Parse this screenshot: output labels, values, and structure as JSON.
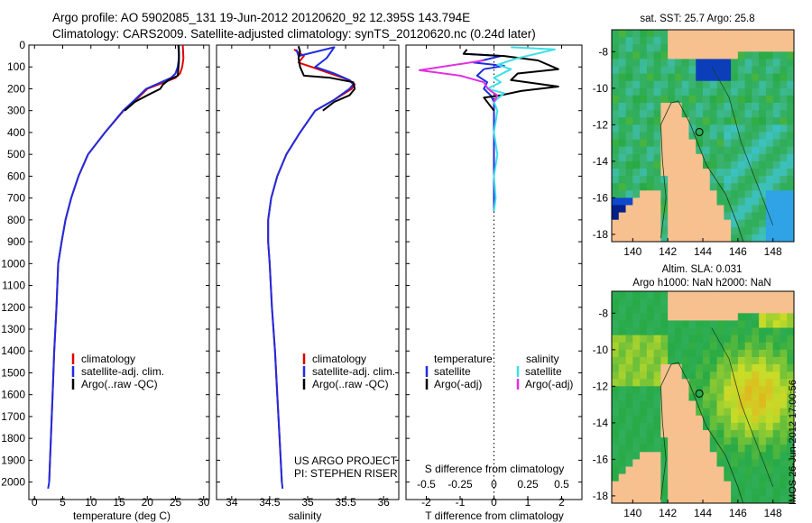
{
  "header": {
    "line1": "Argo profile: AO 5902085_131 19-Jun-2012 20120620_92 12.395S 143.794E",
    "line2": "Climatology: CARS2009. Satellite-adjusted climatology: synTS_20120620.nc (0.24d later)"
  },
  "stamp": "IMOS 26-Jun-2012 17:00:56",
  "project": {
    "line1": "US ARGO PROJECT",
    "line2": "PI: STEPHEN RISER"
  },
  "colors": {
    "climatology": "#e00000",
    "satellite": "#1f2de0",
    "argo": "#000000",
    "cyan": "#3ee0e8",
    "magenta": "#e030e0",
    "land": "#f7c08f"
  },
  "chart_data": [
    {
      "type": "line",
      "name": "temperature",
      "xlabel": "temperature (deg C)",
      "xlim": [
        -1,
        31
      ],
      "ylim": [
        0,
        2080
      ],
      "xticks": [
        "0",
        "5",
        "10",
        "15",
        "20",
        "25",
        "30"
      ],
      "yticks": [
        "0",
        "100",
        "200",
        "300",
        "400",
        "500",
        "600",
        "700",
        "800",
        "900",
        "1000",
        "1100",
        "1200",
        "1300",
        "1400",
        "1500",
        "1600",
        "1700",
        "1800",
        "1900",
        "2000"
      ],
      "legend": [
        "climatology",
        "satellite-adj. clim.",
        "Argo(..raw -QC)"
      ],
      "series": [
        {
          "name": "climatology",
          "color": "#e00000",
          "points": [
            [
              26.3,
              0
            ],
            [
              26.4,
              60
            ],
            [
              26.2,
              100
            ],
            [
              25.8,
              130
            ],
            [
              25.0,
              150
            ],
            [
              22.5,
              175
            ],
            [
              20.0,
              200
            ],
            [
              18.0,
              250
            ],
            [
              15.8,
              300
            ],
            [
              12.5,
              400
            ],
            [
              9.5,
              500
            ],
            [
              7.8,
              600
            ],
            [
              6.5,
              700
            ],
            [
              5.5,
              800
            ],
            [
              4.8,
              900
            ],
            [
              4.2,
              1000
            ],
            [
              3.9,
              1200
            ],
            [
              3.5,
              1400
            ],
            [
              3.2,
              1600
            ],
            [
              2.9,
              1800
            ],
            [
              2.6,
              2000
            ]
          ]
        },
        {
          "name": "satellite-adj. clim.",
          "color": "#1f2de0",
          "points": [
            [
              25.6,
              0
            ],
            [
              25.6,
              60
            ],
            [
              25.4,
              100
            ],
            [
              25.0,
              130
            ],
            [
              24.2,
              150
            ],
            [
              22.0,
              175
            ],
            [
              19.8,
              200
            ],
            [
              17.8,
              250
            ],
            [
              15.7,
              300
            ],
            [
              12.5,
              400
            ],
            [
              9.5,
              500
            ],
            [
              7.8,
              600
            ],
            [
              6.5,
              700
            ],
            [
              5.5,
              800
            ],
            [
              4.8,
              900
            ],
            [
              4.2,
              1000
            ],
            [
              3.9,
              1200
            ],
            [
              3.5,
              1400
            ],
            [
              3.2,
              1600
            ],
            [
              2.9,
              1800
            ],
            [
              2.6,
              2000
            ],
            [
              2.4,
              2030
            ]
          ]
        },
        {
          "name": "Argo(..raw -QC)",
          "color": "#000000",
          "points": [
            [
              25.5,
              0
            ],
            [
              25.6,
              40
            ],
            [
              25.6,
              80
            ],
            [
              25.5,
              110
            ],
            [
              25.4,
              140
            ],
            [
              23.8,
              160
            ],
            [
              22.8,
              180
            ],
            [
              22.3,
              200
            ],
            [
              20.0,
              230
            ],
            [
              17.8,
              260
            ],
            [
              16.0,
              300
            ]
          ]
        }
      ]
    },
    {
      "type": "line",
      "name": "salinity",
      "xlabel": "salinity",
      "xlim": [
        33.8,
        36.2
      ],
      "ylim": [
        0,
        2080
      ],
      "xticks": [
        "34",
        "34.5",
        "35",
        "35.5",
        "36"
      ],
      "legend": [
        "climatology",
        "satellite-adj. clim.",
        "Argo(..raw -QC)"
      ],
      "series": [
        {
          "name": "climatology",
          "color": "#e00000",
          "points": [
            [
              34.82,
              20
            ],
            [
              34.95,
              50
            ],
            [
              34.88,
              80
            ],
            [
              35.05,
              100
            ],
            [
              35.3,
              130
            ],
            [
              35.55,
              160
            ],
            [
              35.62,
              180
            ],
            [
              35.58,
              200
            ],
            [
              35.35,
              250
            ],
            [
              35.1,
              300
            ],
            [
              34.9,
              400
            ],
            [
              34.72,
              500
            ],
            [
              34.6,
              600
            ],
            [
              34.52,
              700
            ],
            [
              34.48,
              800
            ],
            [
              34.48,
              900
            ],
            [
              34.5,
              1000
            ],
            [
              34.53,
              1200
            ],
            [
              34.57,
              1400
            ],
            [
              34.6,
              1600
            ],
            [
              34.63,
              1800
            ],
            [
              34.66,
              2000
            ]
          ]
        },
        {
          "name": "satellite-adj. clim.",
          "color": "#1f2de0",
          "points": [
            [
              34.85,
              20
            ],
            [
              34.88,
              50
            ],
            [
              35.35,
              10
            ],
            [
              35.25,
              60
            ],
            [
              35.1,
              100
            ],
            [
              35.35,
              130
            ],
            [
              35.55,
              160
            ],
            [
              35.6,
              180
            ],
            [
              35.55,
              200
            ],
            [
              35.35,
              250
            ],
            [
              35.1,
              300
            ],
            [
              34.9,
              400
            ],
            [
              34.72,
              500
            ],
            [
              34.6,
              600
            ],
            [
              34.52,
              700
            ],
            [
              34.48,
              800
            ],
            [
              34.48,
              900
            ],
            [
              34.5,
              1000
            ],
            [
              34.53,
              1200
            ],
            [
              34.57,
              1400
            ],
            [
              34.6,
              1600
            ],
            [
              34.63,
              1800
            ],
            [
              34.66,
              2000
            ],
            [
              34.67,
              2030
            ]
          ]
        },
        {
          "name": "Argo(..raw -QC)",
          "color": "#000000",
          "points": [
            [
              34.88,
              5
            ],
            [
              34.9,
              30
            ],
            [
              34.88,
              60
            ],
            [
              34.9,
              100
            ],
            [
              34.95,
              140
            ],
            [
              35.3,
              150
            ],
            [
              35.6,
              170
            ],
            [
              35.62,
              200
            ],
            [
              35.55,
              230
            ],
            [
              35.35,
              260
            ],
            [
              35.2,
              300
            ]
          ]
        }
      ]
    },
    {
      "type": "line",
      "name": "difference from climatology",
      "xlabel": "T difference from climatology",
      "xlabel_top": "S difference from climatology",
      "xlim": [
        -2.6,
        2.6
      ],
      "ylim": [
        0,
        2080
      ],
      "xticks": [
        "-2",
        "-1",
        "0",
        "1",
        "2"
      ],
      "xticks_s": [
        "-0.5",
        "-0.25",
        "0",
        "0.25",
        "0.5"
      ],
      "legend_headers": {
        "temperature": "temperature",
        "salinity": "salinity"
      },
      "legend_t": [
        "satellite",
        "Argo(-adj)"
      ],
      "legend_s": [
        "satellite",
        "Argo(-adj)"
      ],
      "series": [
        {
          "name": "T satellite",
          "color": "#1f2de0",
          "points": [
            [
              -0.8,
              40
            ],
            [
              0.2,
              50
            ],
            [
              -0.6,
              80
            ],
            [
              0.3,
              95
            ],
            [
              -0.3,
              110
            ],
            [
              -0.5,
              140
            ],
            [
              -0.2,
              170
            ],
            [
              -0.3,
              200
            ],
            [
              -0.1,
              230
            ],
            [
              0.0,
              260
            ],
            [
              0.0,
              300
            ],
            [
              0.0,
              600
            ],
            [
              0.0,
              760
            ]
          ]
        },
        {
          "name": "T Argo(-adj)",
          "color": "#000000",
          "points": [
            [
              -0.8,
              20
            ],
            [
              -0.9,
              40
            ],
            [
              0.3,
              50
            ],
            [
              1.3,
              70
            ],
            [
              1.9,
              110
            ],
            [
              0.7,
              130
            ],
            [
              0.5,
              160
            ],
            [
              1.9,
              190
            ],
            [
              0.8,
              210
            ],
            [
              0.2,
              230
            ],
            [
              -0.3,
              240
            ],
            [
              0.0,
              300
            ]
          ]
        },
        {
          "name": "S satellite",
          "color": "#3ee0e8",
          "points": [
            [
              0.5,
              10
            ],
            [
              1.8,
              20
            ],
            [
              0.7,
              60
            ],
            [
              0.1,
              90
            ],
            [
              0.5,
              110
            ],
            [
              0.0,
              150
            ],
            [
              0.2,
              170
            ],
            [
              -0.2,
              200
            ],
            [
              0.3,
              220
            ],
            [
              0.0,
              260
            ],
            [
              0.1,
              300
            ],
            [
              0.0,
              400
            ],
            [
              0.1,
              500
            ],
            [
              0.0,
              600
            ],
            [
              0.05,
              700
            ],
            [
              0.0,
              760
            ]
          ]
        },
        {
          "name": "S Argo(-adj)",
          "color": "#e030e0",
          "points": [
            [
              -0.3,
              70
            ],
            [
              -2.2,
              115
            ],
            [
              -1.0,
              140
            ],
            [
              -0.3,
              170
            ],
            [
              -0.2,
              195
            ],
            [
              -0.1,
              210
            ],
            [
              0.1,
              230
            ],
            [
              0.0,
              260
            ]
          ]
        }
      ]
    },
    {
      "type": "heatmap",
      "name": "sst map",
      "title": "sat. SST: 25.7 Argo: 25.8",
      "xticks": [
        "140",
        "142",
        "144",
        "146",
        "148"
      ],
      "yticks": [
        "-8",
        "-10",
        "-12",
        "-14",
        "-16",
        "-18"
      ],
      "xlim": [
        138.8,
        149.2
      ],
      "ylim": [
        -18.4,
        -6.8
      ],
      "marker": [
        143.8,
        -12.4
      ]
    },
    {
      "type": "heatmap",
      "name": "sla map",
      "title_line1": "Altim. SLA: 0.031",
      "title_line2": "Argo h1000: NaN h2000: NaN",
      "xticks": [
        "140",
        "142",
        "144",
        "146",
        "148"
      ],
      "yticks": [
        "-8",
        "-10",
        "-12",
        "-14",
        "-16",
        "-18"
      ],
      "xlim": [
        138.8,
        149.2
      ],
      "ylim": [
        -18.4,
        -6.8
      ],
      "marker": [
        143.8,
        -12.4
      ]
    }
  ]
}
